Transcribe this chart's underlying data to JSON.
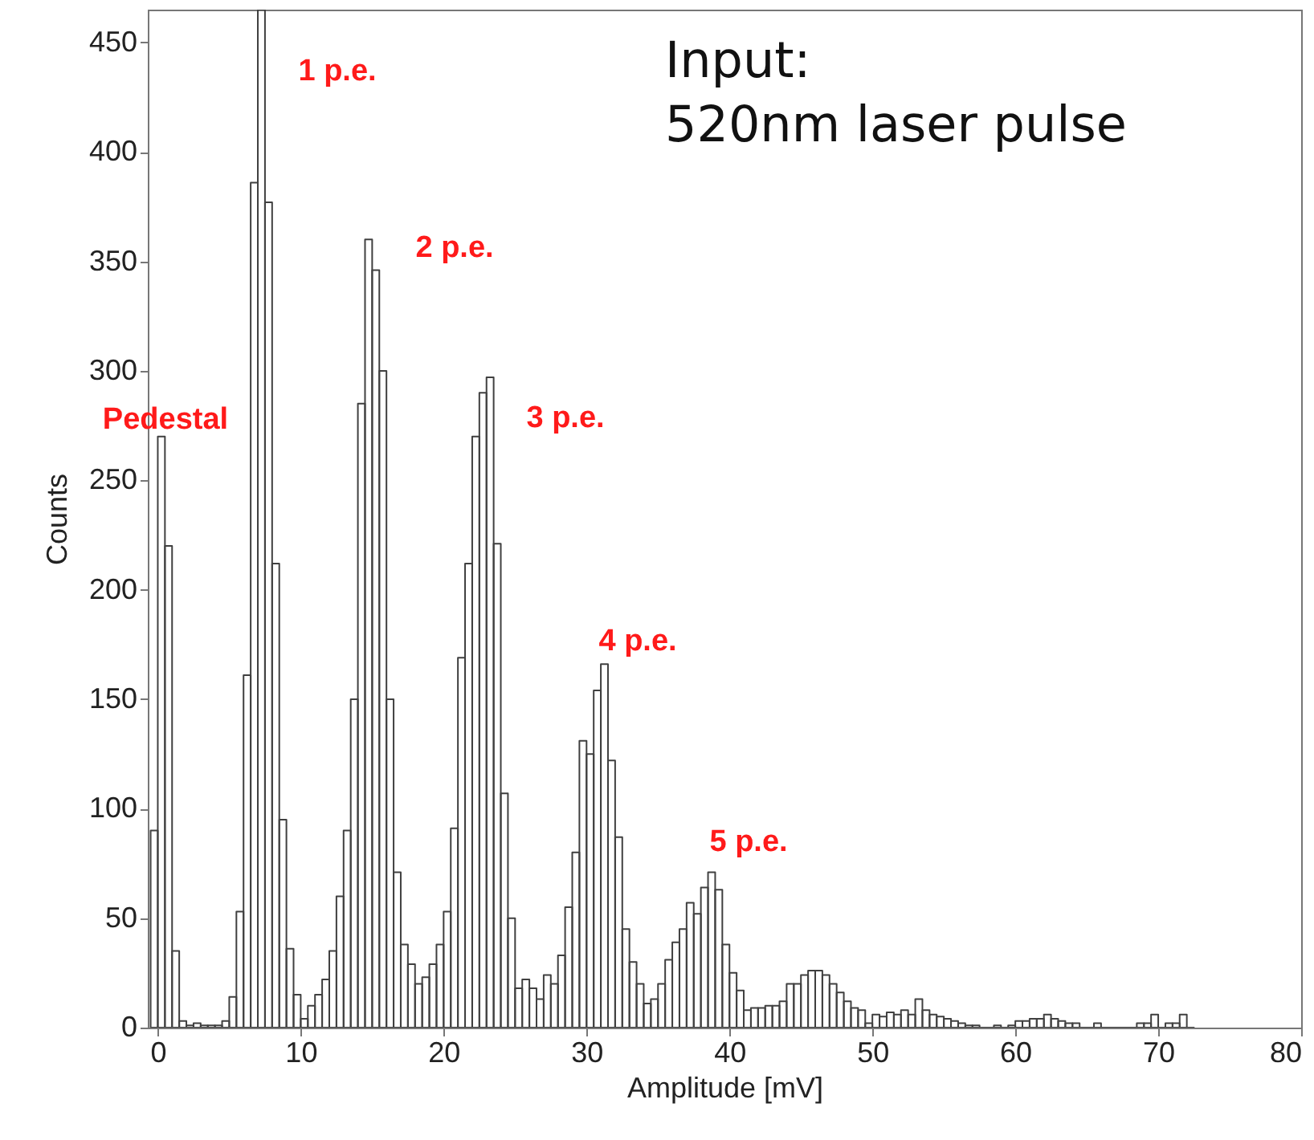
{
  "chart_data": {
    "type": "histogram",
    "xlabel": "Amplitude [mV]",
    "ylabel": "Counts",
    "color": "#404040",
    "bins": [
      -0.5,
      0,
      0.5,
      1,
      1.5,
      2,
      2.5,
      3,
      3.5,
      4,
      4.5,
      5,
      5.5,
      6,
      6.5,
      7,
      7.5,
      8,
      8.5,
      9,
      9.5,
      10,
      10.5,
      11,
      11.5,
      12,
      12.5,
      13,
      13.5,
      14,
      14.5,
      15,
      15.5,
      16,
      16.5,
      17,
      17.5,
      18,
      18.5,
      19,
      19.5,
      20,
      20.5,
      21,
      21.5,
      22,
      22.5,
      23,
      23.5,
      24,
      24.5,
      25,
      25.5,
      26,
      26.5,
      27,
      27.5,
      28,
      28.5,
      29,
      29.5,
      30,
      30.5,
      31,
      31.5,
      32,
      32.5,
      33,
      33.5,
      34,
      34.5,
      35,
      35.5,
      36,
      36.5,
      37,
      37.5,
      38,
      38.5,
      39,
      39.5,
      40,
      40.5,
      41,
      41.5,
      42,
      42.5,
      43,
      43.5,
      44,
      44.5,
      45,
      45.5,
      46,
      46.5,
      47,
      47.5,
      48,
      48.5,
      49,
      49.5,
      50,
      50.5,
      51,
      51.5,
      52,
      52.5,
      53,
      53.5,
      54,
      54.5,
      55,
      55.5,
      56,
      56.5,
      57,
      57.5,
      58,
      58.5,
      59,
      59.5,
      60,
      60.5,
      61,
      61.5,
      62,
      62.5,
      63,
      63.5,
      64,
      64.5,
      65,
      65.5,
      66,
      66.5,
      67,
      67.5,
      68,
      68.5,
      69,
      69.5,
      70,
      70.5,
      71,
      71.5,
      72,
      72.5
    ],
    "values": [
      90,
      270,
      220,
      35,
      3,
      1,
      2,
      1,
      1,
      1,
      3,
      14,
      53,
      161,
      386,
      465,
      377,
      212,
      95,
      36,
      15,
      4,
      10,
      15,
      22,
      35,
      60,
      90,
      150,
      285,
      360,
      346,
      300,
      150,
      71,
      38,
      29,
      20,
      23,
      29,
      38,
      53,
      91,
      169,
      212,
      270,
      290,
      297,
      221,
      107,
      50,
      18,
      22,
      18,
      13,
      24,
      20,
      33,
      55,
      80,
      131,
      125,
      154,
      166,
      122,
      87,
      45,
      30,
      20,
      11,
      13,
      20,
      31,
      39,
      45,
      57,
      52,
      64,
      71,
      63,
      38,
      25,
      17,
      8,
      9,
      9,
      10,
      10,
      12,
      20,
      20,
      24,
      26,
      26,
      24,
      20,
      16,
      12,
      9,
      8,
      2,
      6,
      5,
      7,
      6,
      8,
      6,
      13,
      8,
      6,
      5,
      4,
      3,
      2,
      1,
      1,
      0,
      0,
      1,
      0,
      1,
      3,
      3,
      4,
      4,
      6,
      4,
      3,
      2,
      2,
      0,
      0,
      2,
      0,
      0,
      0,
      0,
      0,
      2,
      2,
      6,
      0,
      2,
      2,
      6,
      0
    ],
    "xlim": [
      -0.7,
      80
    ],
    "xticks": [
      0,
      10,
      20,
      30,
      40,
      50,
      60,
      70,
      80
    ],
    "ylim": [
      0,
      465
    ],
    "yticks": [
      0,
      50,
      100,
      150,
      200,
      250,
      300,
      350,
      400,
      450
    ],
    "grid": false,
    "annotations": [
      "Input:",
      "520nm laser pulse",
      "Pedestal",
      "1 p.e.",
      "2 p.e.",
      "3 p.e.",
      "4 p.e.",
      "5 p.e."
    ]
  }
}
